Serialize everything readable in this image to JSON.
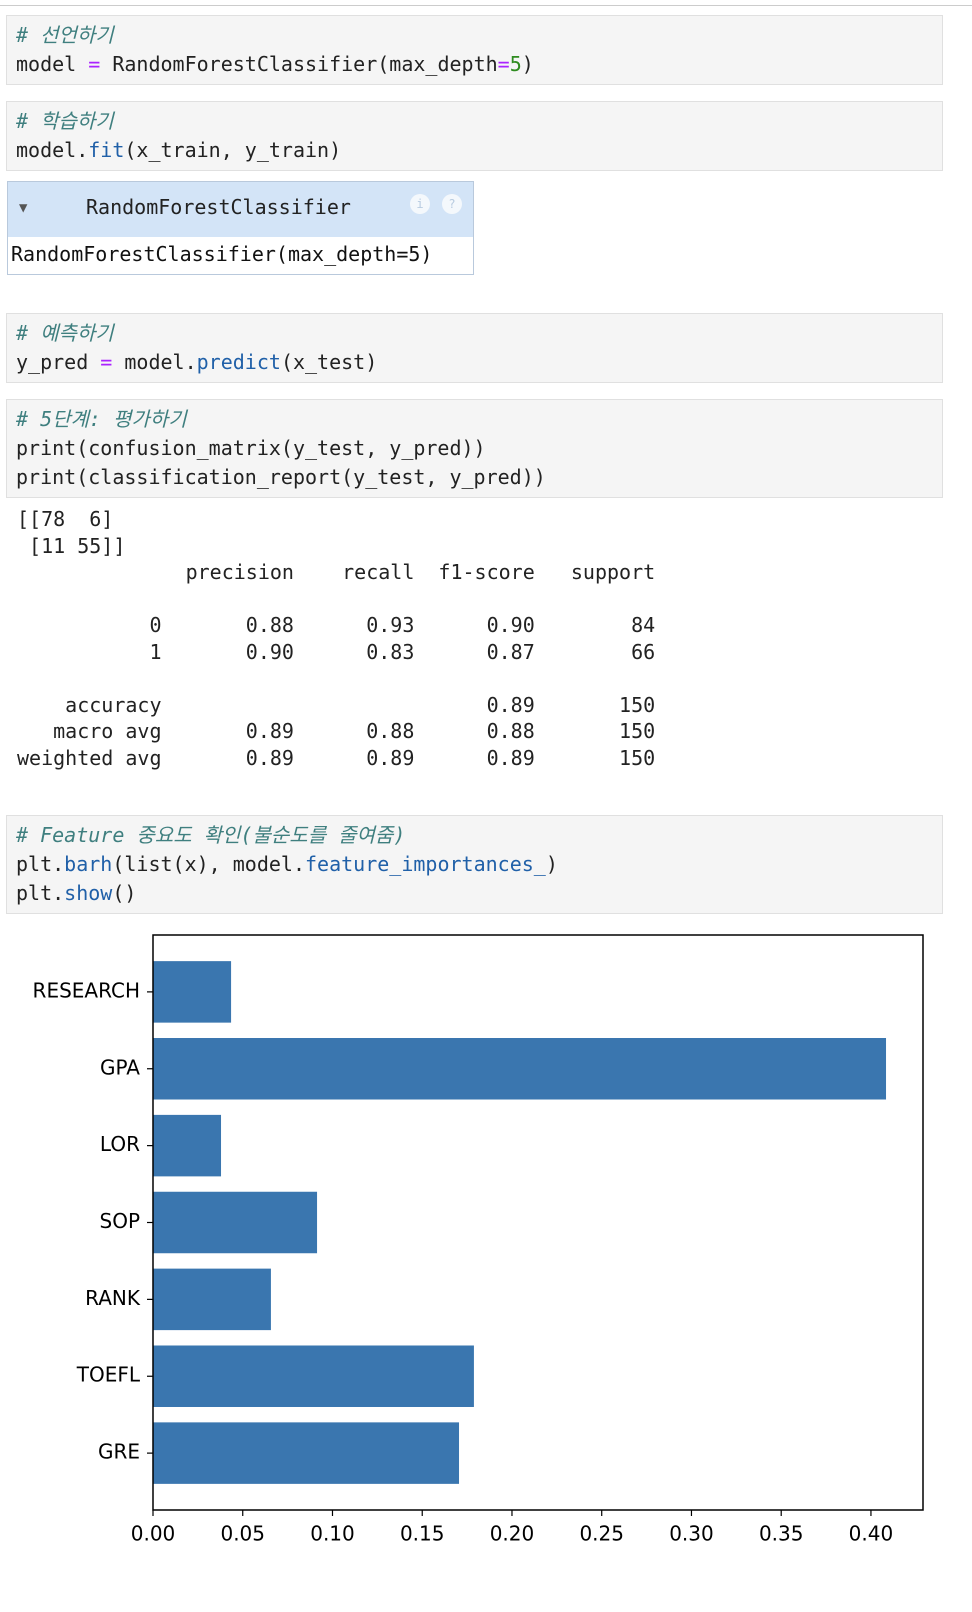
{
  "cells": [
    {
      "lines": [
        "# 선언하기",
        "model = RandomForestClassifier(max_depth=5)"
      ]
    },
    {
      "lines": [
        "# 학습하기",
        "model.fit(x_train, y_train)"
      ]
    },
    {
      "lines": [
        "# 예측하기",
        "y_pred = model.predict(x_test)"
      ]
    },
    {
      "lines": [
        "# 5단계: 평가하기",
        "print(confusion_matrix(y_test, y_pred))",
        "print(classification_report(y_test, y_pred))"
      ]
    },
    {
      "lines": [
        "# Feature 중요도 확인(불순도를 줄여줌)",
        "plt.barh(list(x), model.feature_importances_)",
        "plt.show()"
      ]
    }
  ],
  "widget": {
    "title": "RandomForestClassifier",
    "info_icon": "i",
    "help_icon": "?",
    "body": "RandomForestClassifier(max_depth=5)"
  },
  "output": "[[78  6]\n [11 55]]\n              precision    recall  f1-score   support\n\n           0       0.88      0.93      0.90        84\n           1       0.90      0.83      0.87        66\n\n    accuracy                           0.89       150\n   macro avg       0.89      0.88      0.88       150\nweighted avg       0.89      0.89      0.89       150",
  "chart_data": {
    "type": "barh",
    "categories": [
      "GRE",
      "TOEFL",
      "RANK",
      "SOP",
      "LOR",
      "GPA",
      "RESEARCH"
    ],
    "values": [
      0.1705,
      0.1788,
      0.0657,
      0.0914,
      0.0379,
      0.4084,
      0.0435
    ],
    "color": "#3a76af",
    "xlim": [
      0,
      0.429
    ],
    "xticks": [
      {
        "value": 0,
        "label": "0.00"
      },
      {
        "value": 0.05,
        "label": "0.05"
      },
      {
        "value": 0.1,
        "label": "0.10"
      },
      {
        "value": 0.15,
        "label": "0.15"
      },
      {
        "value": 0.2,
        "label": "0.20"
      },
      {
        "value": 0.25,
        "label": "0.25"
      },
      {
        "value": 0.3,
        "label": "0.30"
      },
      {
        "value": 0.35,
        "label": "0.35"
      },
      {
        "value": 0.4,
        "label": "0.40"
      }
    ],
    "ylim": [
      -0.74,
      6.74
    ]
  }
}
